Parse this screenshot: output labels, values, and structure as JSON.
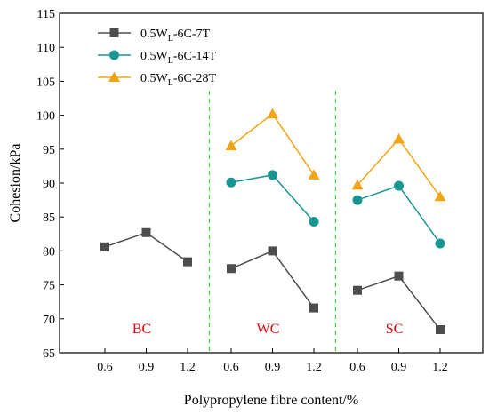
{
  "chart_data": {
    "type": "line",
    "xlabel": "Polypropylene fibre content/%",
    "ylabel": "Cohesion/kPa",
    "ylim": [
      65,
      115
    ],
    "yticks": [
      65,
      70,
      75,
      80,
      85,
      90,
      95,
      100,
      105,
      110,
      115
    ],
    "groups": [
      {
        "label": "BC",
        "x": [
          "0.6",
          "0.9",
          "1.2"
        ]
      },
      {
        "label": "WC",
        "x": [
          "0.6",
          "0.9",
          "1.2"
        ]
      },
      {
        "label": "SC",
        "x": [
          "0.6",
          "0.9",
          "1.2"
        ]
      }
    ],
    "group_label_color": "#e8000b",
    "separator_color": "#3ddc3d",
    "legend_position": "top-left",
    "series": [
      {
        "name_main": "0.5W",
        "name_sub": "L",
        "name_rest": "-6C-7T",
        "color": "#4d4d4d",
        "marker": "square",
        "values": [
          [
            80.6,
            82.7,
            78.4
          ],
          [
            77.4,
            80.0,
            71.6
          ],
          [
            74.2,
            76.3,
            68.4
          ]
        ]
      },
      {
        "name_main": "0.5W",
        "name_sub": "L",
        "name_rest": "-6C-14T",
        "color": "#1a9692",
        "marker": "circle",
        "values": [
          null,
          [
            90.1,
            91.2,
            84.3
          ],
          [
            87.5,
            89.6,
            81.1
          ]
        ]
      },
      {
        "name_main": "0.5W",
        "name_sub": "L",
        "name_rest": "-6C-28T",
        "color": "#f2a513",
        "marker": "triangle",
        "values": [
          null,
          [
            95.5,
            100.2,
            91.2
          ],
          [
            89.7,
            96.5,
            88.0
          ]
        ]
      }
    ]
  }
}
